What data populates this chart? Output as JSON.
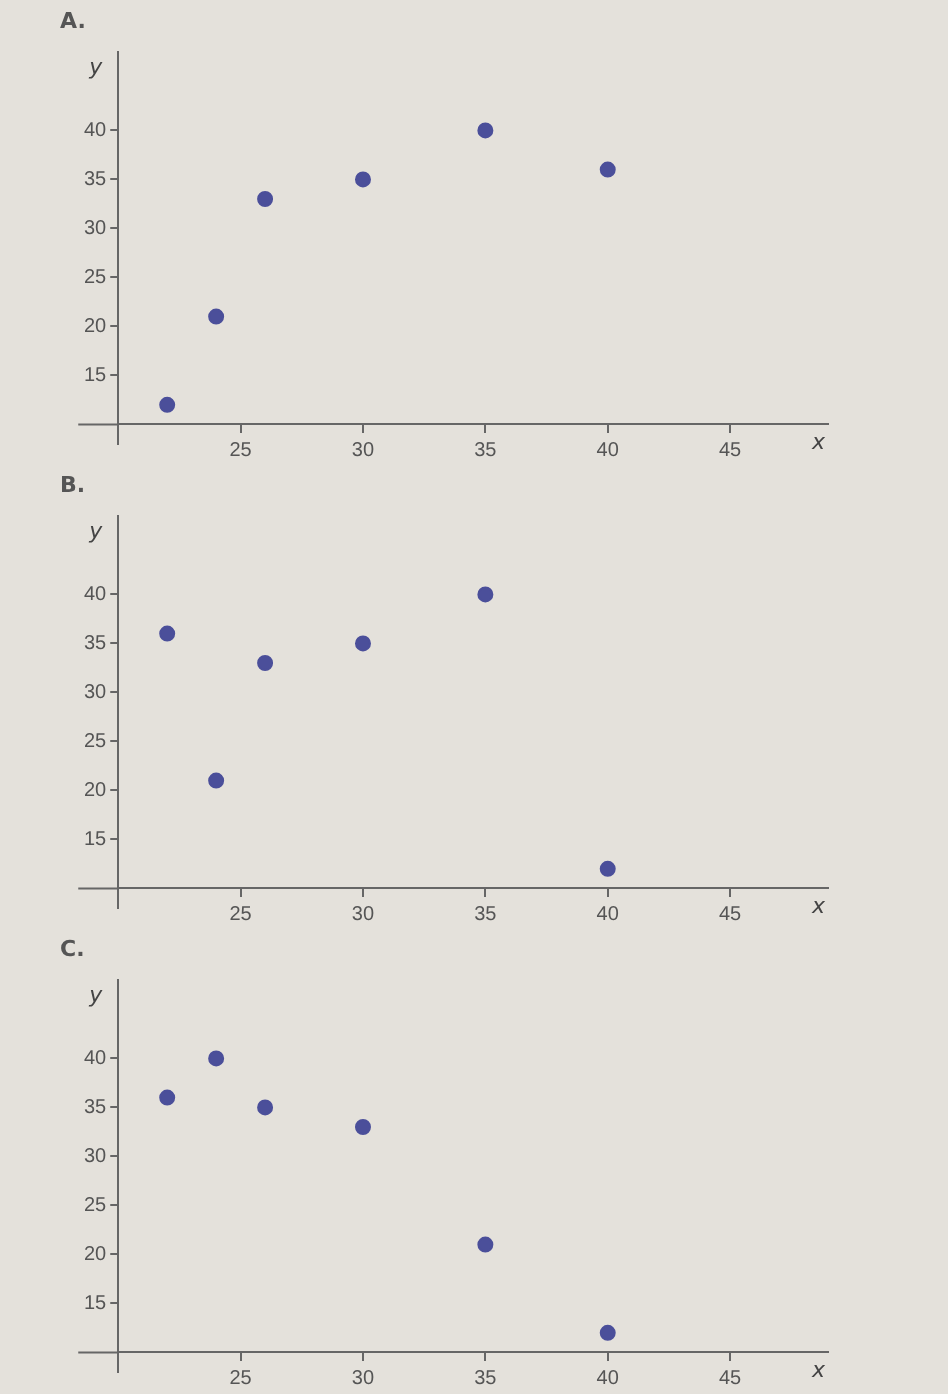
{
  "chart_data": [
    {
      "type": "scatter",
      "title": "A.",
      "xlabel": "x",
      "ylabel": "y",
      "x": [
        22,
        24,
        26,
        30,
        35,
        40
      ],
      "values": [
        12,
        21,
        33,
        35,
        40,
        36
      ],
      "color": "#4b4f9a",
      "marker": "circle",
      "grid": false,
      "legend": false,
      "xlim": [
        20,
        49
      ],
      "ylim": [
        8,
        48
      ],
      "xticks": [
        25,
        30,
        35,
        40,
        45
      ],
      "yticks": [
        15,
        20,
        25,
        30,
        35,
        40
      ]
    },
    {
      "type": "scatter",
      "title": "B.",
      "xlabel": "x",
      "ylabel": "y",
      "x": [
        22,
        24,
        26,
        30,
        35,
        40
      ],
      "values": [
        36,
        21,
        33,
        35,
        40,
        12
      ],
      "color": "#4b4f9a",
      "marker": "circle",
      "grid": false,
      "legend": false,
      "xlim": [
        20,
        49
      ],
      "ylim": [
        8,
        48
      ],
      "xticks": [
        25,
        30,
        35,
        40,
        45
      ],
      "yticks": [
        15,
        20,
        25,
        30,
        35,
        40
      ]
    },
    {
      "type": "scatter",
      "title": "C.",
      "xlabel": "x",
      "ylabel": "y",
      "x": [
        22,
        24,
        26,
        30,
        35,
        40
      ],
      "values": [
        36,
        40,
        35,
        33,
        21,
        12
      ],
      "color": "#4b4f9a",
      "marker": "circle",
      "grid": false,
      "legend": false,
      "xlim": [
        20,
        49
      ],
      "ylim": [
        8,
        48
      ],
      "xticks": [
        25,
        30,
        35,
        40,
        45
      ],
      "yticks": [
        15,
        20,
        25,
        30,
        35,
        40
      ]
    }
  ]
}
